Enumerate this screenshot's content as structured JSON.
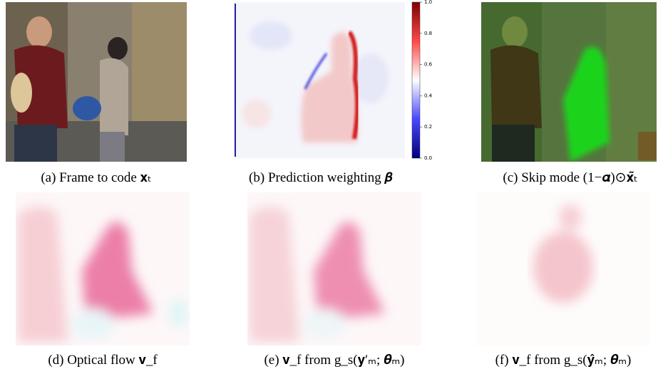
{
  "panels": [
    {
      "caption": "(a) Frame to code 𝐱ₜ"
    },
    {
      "caption": "(b) Prediction weighting 𝜷"
    },
    {
      "caption": "(c) Skip mode (1−𝜶)⊙𝐱̃ₜ"
    },
    {
      "caption": "(d) Optical flow 𝐯_f"
    },
    {
      "caption": "(e) 𝐯_f from g_s(𝐲′ₘ; 𝜽ₘ)"
    },
    {
      "caption": "(f) 𝐯_f from g_s(𝐲̂ₘ; 𝜽ₘ)"
    }
  ],
  "colorbar": {
    "lim": [
      0,
      1
    ],
    "ticks": [
      {
        "value": 0,
        "label": "0.0"
      },
      0.2,
      0.4,
      0.6,
      0.8,
      {
        "value": 1,
        "label": "1.0"
      }
    ]
  }
}
